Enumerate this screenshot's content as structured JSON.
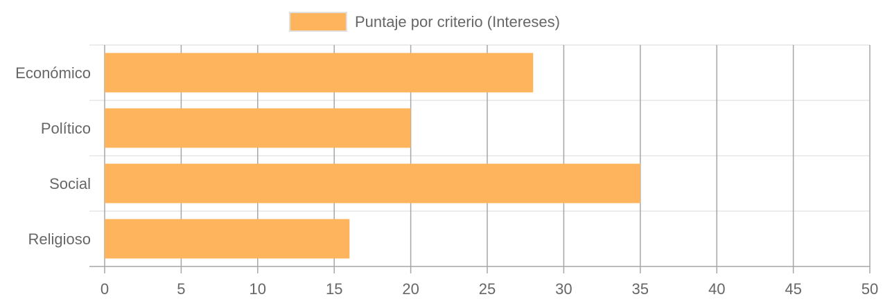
{
  "chart_data": {
    "type": "bar",
    "orientation": "horizontal",
    "categories": [
      "Económico",
      "Político",
      "Social",
      "Religioso"
    ],
    "series": [
      {
        "name": "Puntaje por criterio (Intereses)",
        "values": [
          28,
          20,
          35,
          16
        ],
        "color": "#FDB45C"
      }
    ],
    "xlim": [
      0,
      50
    ],
    "xticks": [
      "0",
      "5",
      "10",
      "15",
      "20",
      "25",
      "30",
      "35",
      "40",
      "45",
      "50"
    ],
    "grid": true,
    "legend": "top"
  },
  "colors": {
    "bar_fill": "#FDB45C",
    "gridline": "#e6e6e6",
    "vertical_gridline": "#a6a6a6",
    "tick_text": "#666666"
  }
}
